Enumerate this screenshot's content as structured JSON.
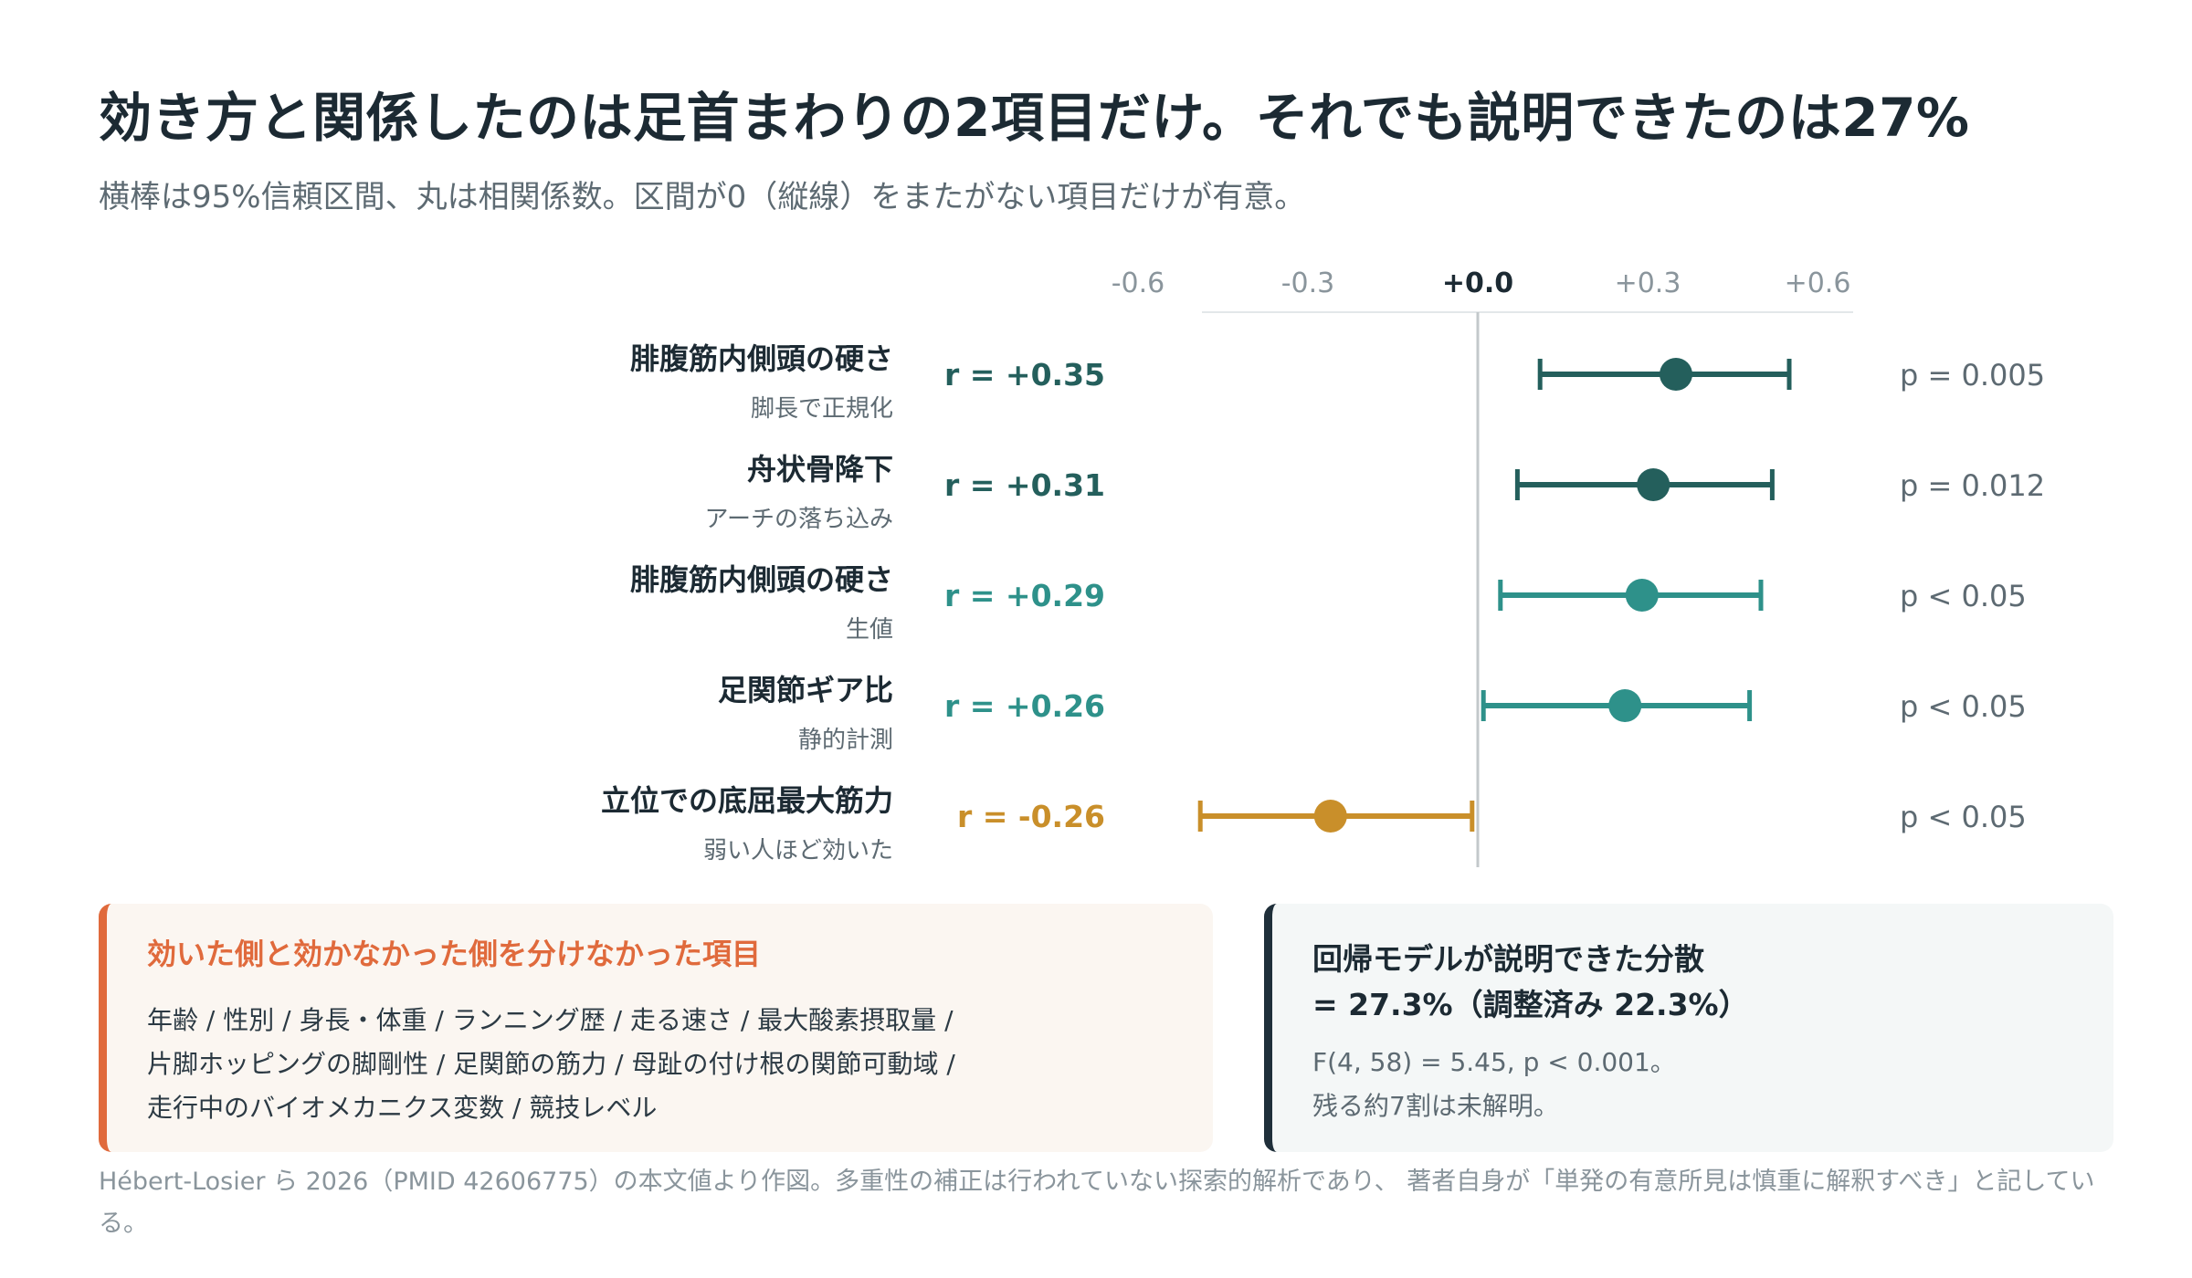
{
  "header": {
    "title": "効き方と関係したのは足首まわりの2項目だけ。それでも説明できたのは27%",
    "subtitle": "横棒は95%信頼区間、丸は相関係数。区間が0（縦線）をまたがない項目だけが有意。"
  },
  "chart_data": {
    "type": "forest",
    "x_ticks": [
      "-0.6",
      "-0.3",
      "+0.0",
      "+0.3",
      "+0.6"
    ],
    "x_tick_values": [
      -0.6,
      -0.3,
      0.0,
      0.3,
      0.6
    ],
    "xlim": [
      -0.6,
      0.7
    ],
    "zero_line": 0.0,
    "rows": [
      {
        "label": "腓腹筋内側頭の硬さ",
        "sublabel": "脚長で正規化",
        "r_label": "r = +0.35",
        "r": 0.35,
        "ci": [
          0.11,
          0.55
        ],
        "p_label": "p = 0.005",
        "color": "#245f5c"
      },
      {
        "label": "舟状骨降下",
        "sublabel": "アーチの落ち込み",
        "r_label": "r = +0.31",
        "r": 0.31,
        "ci": [
          0.07,
          0.52
        ],
        "p_label": "p = 0.012",
        "color": "#245f5c"
      },
      {
        "label": "腓腹筋内側頭の硬さ",
        "sublabel": "生値",
        "r_label": "r = +0.29",
        "r": 0.29,
        "ci": [
          0.04,
          0.5
        ],
        "p_label": "p < 0.05",
        "color": "#2e918a"
      },
      {
        "label": "足関節ギア比",
        "sublabel": "静的計測",
        "r_label": "r = +0.26",
        "r": 0.26,
        "ci": [
          0.01,
          0.48
        ],
        "p_label": "p < 0.05",
        "color": "#2e918a"
      },
      {
        "label": "立位での底屈最大筋力",
        "sublabel": "弱い人ほど効いた",
        "r_label": "r = -0.26",
        "r": -0.26,
        "ci": [
          -0.49,
          -0.01
        ],
        "p_label": "p < 0.05",
        "color": "#c98f2a"
      }
    ]
  },
  "panel_left": {
    "title": "効いた側と効かなかった側を分けなかった項目",
    "lines": [
      "年齢 / 性別 / 身長・体重 / ランニング歴 / 走る速さ / 最大酸素摂取量 /",
      "片脚ホッピングの脚剛性 / 足関節の筋力 / 母趾の付け根の関節可動域 /",
      "走行中のバイオメカニクス変数 / 競技レベル"
    ],
    "accent": "#e06a3c"
  },
  "panel_right": {
    "title_line1": "回帰モデルが説明できた分散",
    "title_line2": "= 27.3%（調整済み 22.3%）",
    "lines": [
      "F(4, 58) = 5.45, p < 0.001。",
      "残る約7割は未解明。"
    ],
    "accent": "#1f2f3a"
  },
  "footnote": "Hébert-Losier ら 2026（PMID 42606775）の本文値より作図。多重性の補正は行われていない探索的解析であり、 著者自身が「単発の有意所見は慎重に解釈すべき」と記している。"
}
